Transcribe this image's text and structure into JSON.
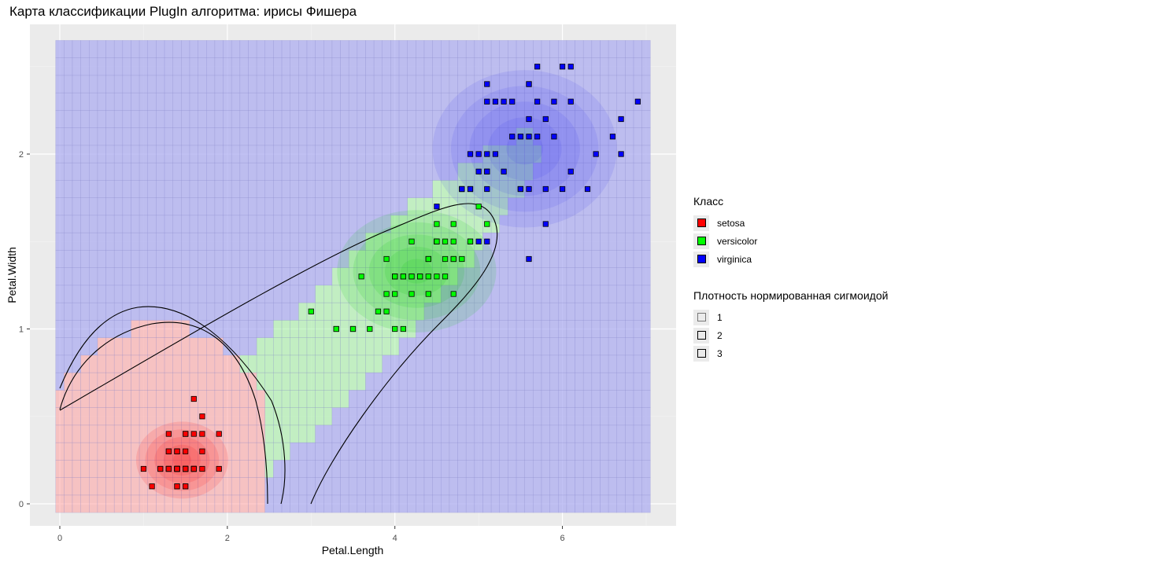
{
  "chart_data": {
    "type": "scatter",
    "title": "Карта классификации PlugIn алгоритма: ирисы Фишера",
    "xlabel": "Petal.Length",
    "ylabel": "Petal.Width",
    "xlim": [
      -0.8,
      7.4
    ],
    "ylim": [
      -0.12,
      2.7
    ],
    "x_ticks": [
      "0",
      "2",
      "4",
      "6"
    ],
    "y_ticks": [
      "0",
      "1",
      "2"
    ],
    "grid": true,
    "legend_position": "right",
    "colors": {
      "setosa": "#ff0000",
      "versicolor": "#00ff00",
      "virginica": "#0000ff"
    },
    "background_map": {
      "type": "heatmap",
      "x_range": [
        0,
        7
      ],
      "y_range": [
        0,
        2.6
      ],
      "step": 0.1,
      "classes": [
        "setosa",
        "versicolor",
        "virginica"
      ]
    },
    "series": [
      {
        "name": "setosa",
        "points": [
          [
            1.4,
            0.2
          ],
          [
            1.4,
            0.2
          ],
          [
            1.3,
            0.2
          ],
          [
            1.5,
            0.2
          ],
          [
            1.4,
            0.2
          ],
          [
            1.7,
            0.4
          ],
          [
            1.4,
            0.3
          ],
          [
            1.5,
            0.2
          ],
          [
            1.4,
            0.2
          ],
          [
            1.5,
            0.1
          ],
          [
            1.5,
            0.2
          ],
          [
            1.6,
            0.2
          ],
          [
            1.4,
            0.1
          ],
          [
            1.1,
            0.1
          ],
          [
            1.2,
            0.2
          ],
          [
            1.5,
            0.4
          ],
          [
            1.3,
            0.4
          ],
          [
            1.4,
            0.3
          ],
          [
            1.7,
            0.3
          ],
          [
            1.5,
            0.3
          ],
          [
            1.7,
            0.2
          ],
          [
            1.5,
            0.4
          ],
          [
            1.0,
            0.2
          ],
          [
            1.7,
            0.5
          ],
          [
            1.9,
            0.2
          ],
          [
            1.6,
            0.2
          ],
          [
            1.6,
            0.4
          ],
          [
            1.5,
            0.2
          ],
          [
            1.4,
            0.2
          ],
          [
            1.6,
            0.2
          ],
          [
            1.6,
            0.2
          ],
          [
            1.5,
            0.4
          ],
          [
            1.5,
            0.1
          ],
          [
            1.4,
            0.2
          ],
          [
            1.5,
            0.2
          ],
          [
            1.2,
            0.2
          ],
          [
            1.3,
            0.2
          ],
          [
            1.4,
            0.1
          ],
          [
            1.3,
            0.2
          ],
          [
            1.5,
            0.2
          ],
          [
            1.3,
            0.3
          ],
          [
            1.3,
            0.3
          ],
          [
            1.3,
            0.2
          ],
          [
            1.6,
            0.6
          ],
          [
            1.9,
            0.4
          ],
          [
            1.4,
            0.3
          ],
          [
            1.6,
            0.2
          ],
          [
            1.4,
            0.2
          ],
          [
            1.5,
            0.2
          ],
          [
            1.4,
            0.2
          ]
        ]
      },
      {
        "name": "versicolor",
        "points": [
          [
            4.7,
            1.4
          ],
          [
            4.5,
            1.5
          ],
          [
            4.9,
            1.5
          ],
          [
            4.0,
            1.3
          ],
          [
            4.6,
            1.5
          ],
          [
            4.5,
            1.3
          ],
          [
            4.7,
            1.6
          ],
          [
            3.3,
            1.0
          ],
          [
            4.6,
            1.3
          ],
          [
            3.9,
            1.4
          ],
          [
            3.5,
            1.0
          ],
          [
            4.2,
            1.5
          ],
          [
            4.0,
            1.0
          ],
          [
            4.7,
            1.4
          ],
          [
            3.6,
            1.3
          ],
          [
            4.4,
            1.4
          ],
          [
            4.5,
            1.5
          ],
          [
            4.1,
            1.0
          ],
          [
            4.5,
            1.5
          ],
          [
            3.9,
            1.1
          ],
          [
            4.8,
            1.8
          ],
          [
            4.0,
            1.3
          ],
          [
            4.9,
            1.5
          ],
          [
            4.7,
            1.2
          ],
          [
            4.3,
            1.3
          ],
          [
            4.4,
            1.4
          ],
          [
            4.8,
            1.4
          ],
          [
            5.0,
            1.7
          ],
          [
            4.5,
            1.5
          ],
          [
            3.5,
            1.0
          ],
          [
            3.8,
            1.1
          ],
          [
            3.7,
            1.0
          ],
          [
            3.9,
            1.2
          ],
          [
            5.1,
            1.6
          ],
          [
            4.5,
            1.5
          ],
          [
            4.5,
            1.6
          ],
          [
            4.7,
            1.5
          ],
          [
            4.4,
            1.3
          ],
          [
            4.1,
            1.3
          ],
          [
            4.0,
            1.3
          ],
          [
            4.4,
            1.2
          ],
          [
            4.6,
            1.4
          ],
          [
            4.0,
            1.2
          ],
          [
            3.3,
            1.0
          ],
          [
            4.2,
            1.3
          ],
          [
            4.2,
            1.2
          ],
          [
            4.2,
            1.3
          ],
          [
            4.3,
            1.3
          ],
          [
            3.0,
            1.1
          ],
          [
            4.1,
            1.3
          ]
        ]
      },
      {
        "name": "virginica",
        "points": [
          [
            6.0,
            2.5
          ],
          [
            5.1,
            1.9
          ],
          [
            5.9,
            2.1
          ],
          [
            5.6,
            1.8
          ],
          [
            5.8,
            2.2
          ],
          [
            6.6,
            2.1
          ],
          [
            4.5,
            1.7
          ],
          [
            6.3,
            1.8
          ],
          [
            5.8,
            1.8
          ],
          [
            6.1,
            2.5
          ],
          [
            5.1,
            2.0
          ],
          [
            5.3,
            1.9
          ],
          [
            5.5,
            2.1
          ],
          [
            5.0,
            2.0
          ],
          [
            5.1,
            2.4
          ],
          [
            5.3,
            2.3
          ],
          [
            5.5,
            1.8
          ],
          [
            6.7,
            2.2
          ],
          [
            6.9,
            2.3
          ],
          [
            5.0,
            1.5
          ],
          [
            5.7,
            2.3
          ],
          [
            4.9,
            2.0
          ],
          [
            6.7,
            2.0
          ],
          [
            4.9,
            1.8
          ],
          [
            5.7,
            2.1
          ],
          [
            6.0,
            1.8
          ],
          [
            4.8,
            1.8
          ],
          [
            4.9,
            1.8
          ],
          [
            5.6,
            2.1
          ],
          [
            5.8,
            1.6
          ],
          [
            6.1,
            1.9
          ],
          [
            6.4,
            2.0
          ],
          [
            5.6,
            2.2
          ],
          [
            5.1,
            1.5
          ],
          [
            5.6,
            1.4
          ],
          [
            6.1,
            2.3
          ],
          [
            5.6,
            2.4
          ],
          [
            5.5,
            1.8
          ],
          [
            4.8,
            1.8
          ],
          [
            5.4,
            2.1
          ],
          [
            5.6,
            2.4
          ],
          [
            5.1,
            2.3
          ],
          [
            5.1,
            1.9
          ],
          [
            5.9,
            2.3
          ],
          [
            5.7,
            2.5
          ],
          [
            5.2,
            2.3
          ],
          [
            5.0,
            1.9
          ],
          [
            5.2,
            2.0
          ],
          [
            5.4,
            2.3
          ],
          [
            5.1,
            1.8
          ]
        ]
      }
    ]
  },
  "legend": {
    "class_title": "Класс",
    "class_items": [
      "setosa",
      "versicolor",
      "virginica"
    ],
    "density_title": "Плотность нормированная сигмоидой",
    "density_items": [
      "1",
      "2",
      "3"
    ]
  }
}
